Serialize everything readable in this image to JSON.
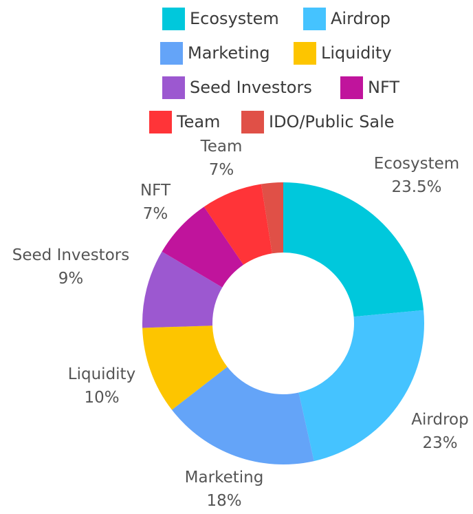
{
  "chart_data": {
    "type": "pie",
    "donut": true,
    "legend_position": "top",
    "slices": [
      {
        "label": "Ecosystem",
        "value": 23.5,
        "value_label": "23.5%",
        "color": "#00C8DC"
      },
      {
        "label": "Airdrop",
        "value": 23,
        "value_label": "23%",
        "color": "#45C3FF"
      },
      {
        "label": "Marketing",
        "value": 18,
        "value_label": "18%",
        "color": "#64A4F8"
      },
      {
        "label": "Liquidity",
        "value": 10,
        "value_label": "10%",
        "color": "#FDC500"
      },
      {
        "label": "Seed Investors",
        "value": 9,
        "value_label": "9%",
        "color": "#9C58D0"
      },
      {
        "label": "NFT",
        "value": 7,
        "value_label": "7%",
        "color": "#C0149C"
      },
      {
        "label": "Team",
        "value": 7,
        "value_label": "7%",
        "color": "#FF3438"
      },
      {
        "label": "IDO/Public Sale",
        "value": 2.5,
        "value_label": "",
        "color": "#E05047"
      }
    ]
  }
}
